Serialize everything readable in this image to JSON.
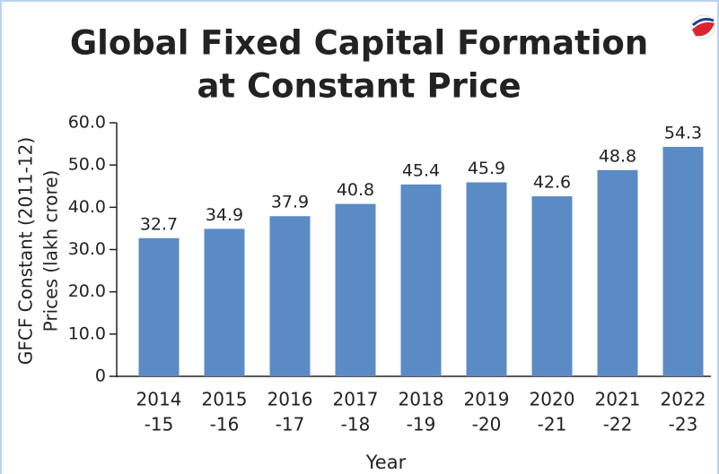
{
  "chart_data": {
    "type": "bar",
    "title": [
      "Global Fixed Capital Formation",
      "at Constant Price"
    ],
    "ylabel": [
      "GFCF Constant (2011-12)",
      "Prices (lakh crore)"
    ],
    "xlabel": "Year",
    "categories": [
      [
        "2014",
        "-15"
      ],
      [
        "2015",
        "-16"
      ],
      [
        "2016",
        "-17"
      ],
      [
        "2017",
        "-18"
      ],
      [
        "2018",
        "-19"
      ],
      [
        "2019",
        "-20"
      ],
      [
        "2020",
        "-21"
      ],
      [
        "2021",
        "-22"
      ],
      [
        "2022",
        "-23"
      ]
    ],
    "values": [
      32.7,
      34.9,
      37.9,
      40.8,
      45.4,
      45.9,
      42.6,
      48.8,
      54.3
    ],
    "color": "#5b8bc5",
    "ylim": [
      0,
      60
    ],
    "yticks": [
      0,
      {
        "value": 10,
        "label": "10.0"
      },
      {
        "value": 20,
        "label": "20.0"
      },
      {
        "value": 30,
        "label": "30.0"
      },
      {
        "value": 40,
        "label": "40.0"
      },
      {
        "value": 50,
        "label": "50.0"
      },
      {
        "value": 60,
        "label": "60.0"
      }
    ],
    "grid": false
  }
}
